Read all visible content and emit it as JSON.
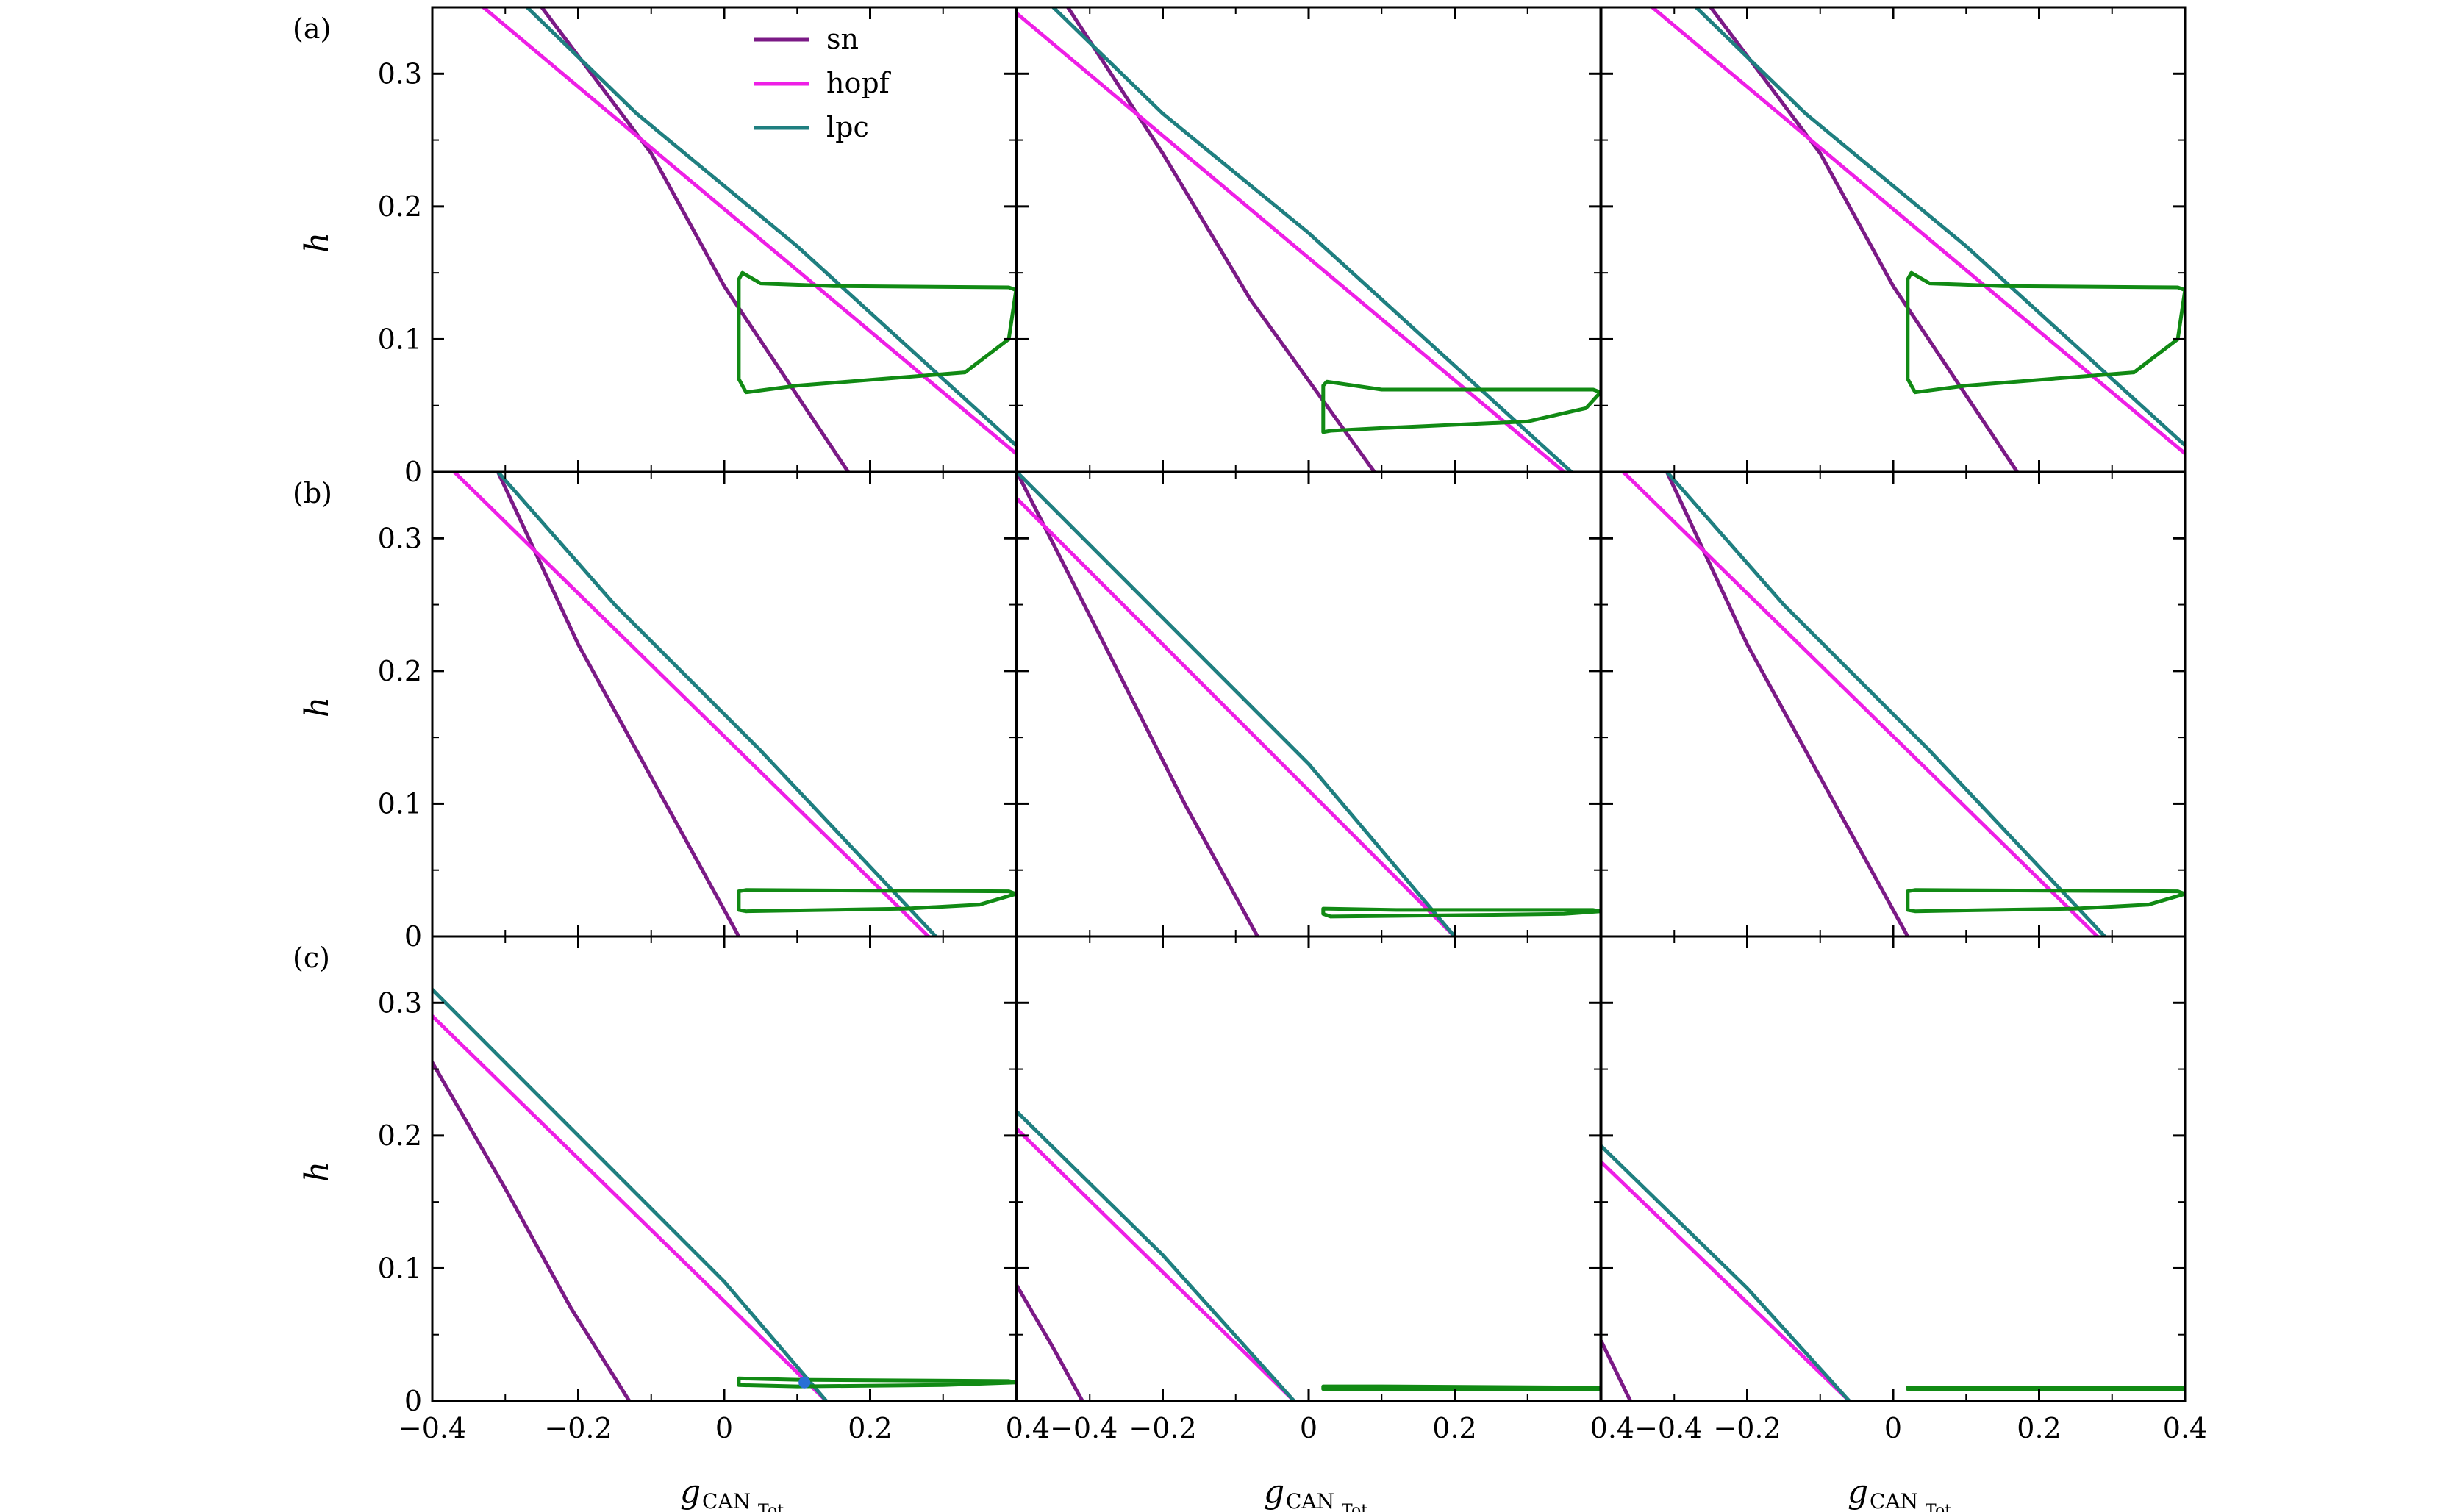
{
  "colors": {
    "sn": "#7b1a86",
    "hopf": "#ee1fe6",
    "lpc": "#1f7f80",
    "cycle": "#118a14",
    "marker": "#2a6fd6"
  },
  "legend": {
    "entries": [
      "sn",
      "hopf",
      "lpc"
    ]
  },
  "axes": {
    "xlabel": "g",
    "xlabel_sub": "CAN",
    "xlabel_subsub": "Tot",
    "ylabel": "h",
    "x_ticks": [
      "−0.4",
      "−0.2",
      "0",
      "0.2",
      "0.4"
    ],
    "y_ticks": [
      "0",
      "0.1",
      "0.2",
      "0.3"
    ]
  },
  "row_labels": [
    "(a)",
    "(b)",
    "(c)"
  ],
  "chart_data": {
    "type": "line",
    "layout": "3 rows x 3 columns of panels",
    "xlim": [
      -0.4,
      0.4
    ],
    "ylim": [
      0,
      0.35
    ],
    "series_names": [
      "sn",
      "hopf",
      "lpc"
    ],
    "panels": [
      {
        "row": "(a)",
        "col": 1,
        "sn": [
          [
            -0.25,
            0.35
          ],
          [
            -0.1,
            0.24
          ],
          [
            0.0,
            0.14
          ],
          [
            0.17,
            0.0
          ]
        ],
        "hopf": [
          [
            -0.33,
            0.35
          ],
          [
            0.43,
            0.0
          ]
        ],
        "lpc": [
          [
            -0.27,
            0.35
          ],
          [
            -0.12,
            0.27
          ],
          [
            0.1,
            0.17
          ],
          [
            0.44,
            0.0
          ]
        ],
        "cycle": [
          [
            0.02,
            0.07
          ],
          [
            0.02,
            0.145
          ],
          [
            0.025,
            0.15
          ],
          [
            0.05,
            0.142
          ],
          [
            0.15,
            0.14
          ],
          [
            0.39,
            0.139
          ],
          [
            0.4,
            0.137
          ],
          [
            0.39,
            0.1
          ],
          [
            0.33,
            0.075
          ],
          [
            0.1,
            0.065
          ],
          [
            0.03,
            0.06
          ],
          [
            0.02,
            0.07
          ]
        ]
      },
      {
        "row": "(a)",
        "col": 2,
        "sn": [
          [
            -0.33,
            0.35
          ],
          [
            -0.2,
            0.24
          ],
          [
            -0.08,
            0.13
          ],
          [
            0.09,
            0.0
          ]
        ],
        "hopf": [
          [
            -0.41,
            0.35
          ],
          [
            0.35,
            0.0
          ]
        ],
        "lpc": [
          [
            -0.35,
            0.35
          ],
          [
            -0.2,
            0.27
          ],
          [
            0.0,
            0.18
          ],
          [
            0.36,
            0.0
          ]
        ],
        "cycle": [
          [
            0.02,
            0.03
          ],
          [
            0.02,
            0.065
          ],
          [
            0.025,
            0.068
          ],
          [
            0.1,
            0.062
          ],
          [
            0.39,
            0.062
          ],
          [
            0.4,
            0.06
          ],
          [
            0.38,
            0.048
          ],
          [
            0.3,
            0.038
          ],
          [
            0.1,
            0.033
          ],
          [
            0.03,
            0.031
          ],
          [
            0.02,
            0.03
          ]
        ]
      },
      {
        "row": "(a)",
        "col": 3,
        "sn": [
          [
            -0.25,
            0.35
          ],
          [
            -0.1,
            0.24
          ],
          [
            0.0,
            0.14
          ],
          [
            0.17,
            0.0
          ]
        ],
        "hopf": [
          [
            -0.33,
            0.35
          ],
          [
            0.43,
            0.0
          ]
        ],
        "lpc": [
          [
            -0.27,
            0.35
          ],
          [
            -0.12,
            0.27
          ],
          [
            0.1,
            0.17
          ],
          [
            0.44,
            0.0
          ]
        ],
        "cycle": [
          [
            0.02,
            0.07
          ],
          [
            0.02,
            0.145
          ],
          [
            0.025,
            0.15
          ],
          [
            0.05,
            0.142
          ],
          [
            0.15,
            0.14
          ],
          [
            0.39,
            0.139
          ],
          [
            0.4,
            0.137
          ],
          [
            0.39,
            0.1
          ],
          [
            0.33,
            0.075
          ],
          [
            0.1,
            0.065
          ],
          [
            0.03,
            0.06
          ],
          [
            0.02,
            0.07
          ]
        ]
      },
      {
        "row": "(b)",
        "col": 1,
        "sn": [
          [
            -0.31,
            0.35
          ],
          [
            -0.2,
            0.22
          ],
          [
            -0.08,
            0.1
          ],
          [
            0.02,
            0.0
          ]
        ],
        "hopf": [
          [
            -0.37,
            0.35
          ],
          [
            0.28,
            0.0
          ]
        ],
        "lpc": [
          [
            -0.31,
            0.35
          ],
          [
            -0.15,
            0.25
          ],
          [
            0.05,
            0.14
          ],
          [
            0.29,
            0.0
          ]
        ],
        "cycle": [
          [
            0.02,
            0.02
          ],
          [
            0.02,
            0.034
          ],
          [
            0.03,
            0.035
          ],
          [
            0.39,
            0.034
          ],
          [
            0.4,
            0.032
          ],
          [
            0.35,
            0.024
          ],
          [
            0.25,
            0.021
          ],
          [
            0.03,
            0.019
          ],
          [
            0.02,
            0.02
          ]
        ]
      },
      {
        "row": "(b)",
        "col": 2,
        "sn": [
          [
            -0.4,
            0.35
          ],
          [
            -0.28,
            0.22
          ],
          [
            -0.17,
            0.1
          ],
          [
            -0.07,
            0.0
          ]
        ],
        "hopf": [
          [
            -0.4,
            0.33
          ],
          [
            0.2,
            0.0
          ]
        ],
        "lpc": [
          [
            -0.4,
            0.35
          ],
          [
            -0.2,
            0.24
          ],
          [
            0.0,
            0.13
          ],
          [
            0.2,
            0.0
          ]
        ],
        "cycle": [
          [
            0.02,
            0.017
          ],
          [
            0.02,
            0.021
          ],
          [
            0.12,
            0.02
          ],
          [
            0.39,
            0.02
          ],
          [
            0.4,
            0.019
          ],
          [
            0.35,
            0.017
          ],
          [
            0.2,
            0.016
          ],
          [
            0.03,
            0.015
          ],
          [
            0.02,
            0.017
          ]
        ]
      },
      {
        "row": "(b)",
        "col": 3,
        "sn": [
          [
            -0.31,
            0.35
          ],
          [
            -0.2,
            0.22
          ],
          [
            -0.08,
            0.1
          ],
          [
            0.02,
            0.0
          ]
        ],
        "hopf": [
          [
            -0.37,
            0.35
          ],
          [
            0.28,
            0.0
          ]
        ],
        "lpc": [
          [
            -0.31,
            0.35
          ],
          [
            -0.15,
            0.25
          ],
          [
            0.05,
            0.14
          ],
          [
            0.29,
            0.0
          ]
        ],
        "cycle": [
          [
            0.02,
            0.02
          ],
          [
            0.02,
            0.034
          ],
          [
            0.03,
            0.035
          ],
          [
            0.39,
            0.034
          ],
          [
            0.4,
            0.032
          ],
          [
            0.35,
            0.024
          ],
          [
            0.25,
            0.021
          ],
          [
            0.03,
            0.019
          ],
          [
            0.02,
            0.02
          ]
        ]
      },
      {
        "row": "(c)",
        "col": 1,
        "sn": [
          [
            -0.4,
            0.255
          ],
          [
            -0.3,
            0.16
          ],
          [
            -0.21,
            0.07
          ],
          [
            -0.13,
            0.0
          ]
        ],
        "hopf": [
          [
            -0.4,
            0.29
          ],
          [
            0.14,
            0.0
          ]
        ],
        "lpc": [
          [
            -0.4,
            0.31
          ],
          [
            -0.2,
            0.2
          ],
          [
            0.0,
            0.09
          ],
          [
            0.14,
            0.0
          ]
        ],
        "cycle": [
          [
            0.02,
            0.012
          ],
          [
            0.02,
            0.017
          ],
          [
            0.1,
            0.016
          ],
          [
            0.39,
            0.015
          ],
          [
            0.4,
            0.014
          ],
          [
            0.3,
            0.012
          ],
          [
            0.1,
            0.011
          ],
          [
            0.02,
            0.012
          ]
        ],
        "marker": [
          0.11,
          0.014
        ]
      },
      {
        "row": "(c)",
        "col": 2,
        "sn": [
          [
            -0.4,
            0.087
          ],
          [
            -0.35,
            0.04
          ],
          [
            -0.31,
            0.0
          ]
        ],
        "hopf": [
          [
            -0.4,
            0.205
          ],
          [
            -0.02,
            0.0
          ]
        ],
        "lpc": [
          [
            -0.4,
            0.218
          ],
          [
            -0.2,
            0.11
          ],
          [
            -0.02,
            0.0
          ]
        ],
        "cycle": [
          [
            0.02,
            0.009
          ],
          [
            0.02,
            0.011
          ],
          [
            0.1,
            0.011
          ],
          [
            0.4,
            0.01
          ],
          [
            0.4,
            0.009
          ],
          [
            0.02,
            0.009
          ]
        ]
      },
      {
        "row": "(c)",
        "col": 3,
        "sn": [
          [
            -0.4,
            0.045
          ],
          [
            -0.36,
            0.0
          ]
        ],
        "hopf": [
          [
            -0.4,
            0.18
          ],
          [
            -0.06,
            0.0
          ]
        ],
        "lpc": [
          [
            -0.4,
            0.192
          ],
          [
            -0.2,
            0.085
          ],
          [
            -0.06,
            0.0
          ]
        ],
        "cycle": [
          [
            0.02,
            0.009
          ],
          [
            0.02,
            0.01
          ],
          [
            0.4,
            0.01
          ],
          [
            0.4,
            0.009
          ],
          [
            0.02,
            0.009
          ]
        ]
      }
    ]
  }
}
